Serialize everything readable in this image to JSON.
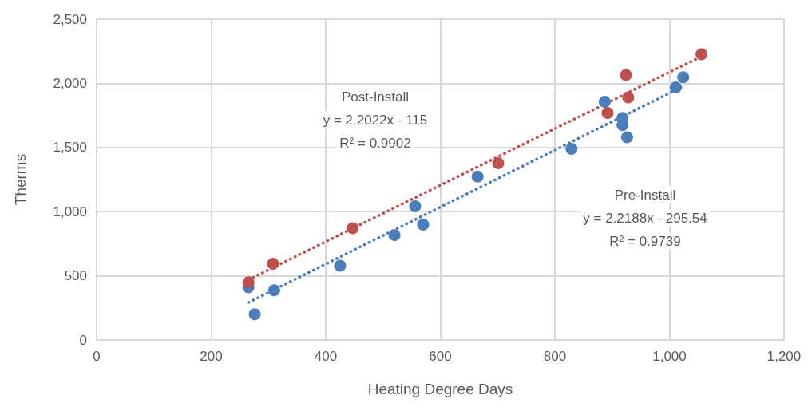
{
  "chart_data": {
    "type": "scatter",
    "xlabel": "Heating Degree Days",
    "ylabel": "Therms",
    "xlim": [
      0,
      1200
    ],
    "xticks": [
      0,
      {
        "value": 200,
        "label": "200"
      },
      {
        "value": 400,
        "label": "400"
      },
      {
        "value": 600,
        "label": "600"
      },
      {
        "value": 800,
        "label": "800"
      },
      {
        "value": 1000,
        "label": "1,000"
      },
      {
        "value": 1200,
        "label": "1,200"
      }
    ],
    "ylim": [
      0,
      2500
    ],
    "yticks": [
      0,
      500,
      {
        "value": 1000,
        "label": "1,000"
      },
      {
        "value": 1500,
        "label": "1,500"
      },
      {
        "value": 2000,
        "label": "2,000"
      },
      {
        "value": 2500,
        "label": "2,500"
      }
    ],
    "grid": true,
    "marker": "circle",
    "series": [
      {
        "color": "#4a7ebb",
        "x": [
          265,
          276,
          310,
          425,
          520,
          556,
          570,
          665,
          829,
          887,
          918,
          918,
          926,
          1011,
          1024
        ],
        "values": [
          411,
          201,
          387,
          578,
          817,
          1041,
          898,
          1274,
          1490,
          1856,
          1731,
          1675,
          1579,
          1968,
          2047
        ]
      },
      {
        "color": "#c0504d",
        "x": [
          265,
          308,
          447,
          701,
          892,
          924,
          928,
          1056
        ],
        "values": [
          449,
          594,
          870,
          1378,
          1769,
          2064,
          1891,
          2226
        ]
      },
      {
        "type": "line",
        "line_style": "dotted",
        "marker": "none",
        "color": "#4a7ebb",
        "x": [
          265,
          1024
        ],
        "values": [
          292,
          1977
        ]
      },
      {
        "type": "line",
        "line_style": "dotted",
        "marker": "none",
        "color": "#c0504d",
        "x": [
          265,
          1056
        ],
        "values": [
          469,
          2210
        ]
      }
    ],
    "annotations": [
      "Post-Install",
      "y = 2.2022x - 115",
      "R² = 0.9902",
      "Pre-Install",
      "y = 2.2188x - 295.54",
      "R² = 0.9739"
    ]
  }
}
